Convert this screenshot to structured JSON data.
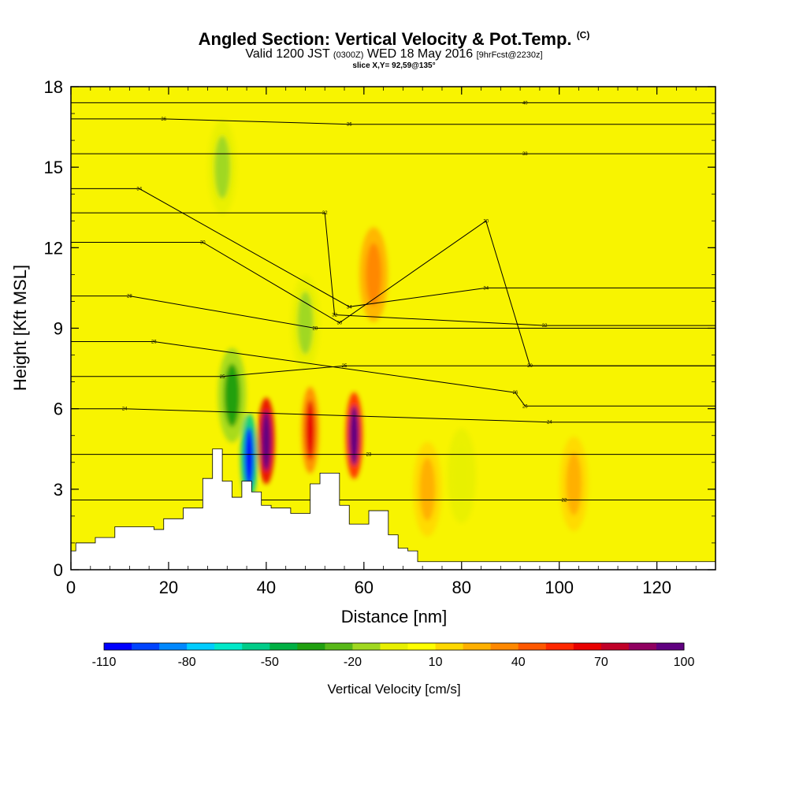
{
  "title": {
    "main": "Angled Section: Vertical Velocity & Pot.Temp.",
    "main_unit": "(C)",
    "line2_a": "Valid 1200 JST",
    "line2_b": "(0300Z)",
    "line2_c": "WED 18 May 2016",
    "line2_d": "[9hrFcst@2230z]",
    "line3": "slice X,Y= 92,59@135°"
  },
  "chart_data": {
    "type": "heatmap",
    "xlabel": "Distance [nm]",
    "ylabel": "Height [Kft MSL]",
    "xlim": [
      0,
      132
    ],
    "ylim": [
      0,
      18
    ],
    "xticks": [
      0,
      20,
      40,
      60,
      80,
      100,
      120
    ],
    "yticks": [
      0,
      3,
      6,
      9,
      12,
      15,
      18
    ],
    "terrain": {
      "x": [
        0,
        1,
        5,
        9,
        13,
        17,
        19,
        23,
        27,
        29,
        31,
        33,
        35,
        37,
        39,
        41,
        45,
        49,
        51,
        55,
        57,
        61,
        65,
        67,
        69,
        71,
        132
      ],
      "top": [
        0.7,
        1.0,
        1.2,
        1.6,
        1.6,
        1.5,
        1.9,
        2.3,
        3.4,
        4.5,
        3.3,
        2.7,
        3.3,
        2.9,
        2.4,
        2.3,
        2.1,
        3.2,
        3.6,
        2.4,
        1.7,
        2.2,
        1.3,
        0.8,
        0.7,
        0.3,
        0.3
      ]
    },
    "velocity_features": [
      {
        "x": 40,
        "z": 4.8,
        "w": 100
      },
      {
        "x": 58,
        "z": 5.0,
        "w": 85
      },
      {
        "x": 49,
        "z": 5.2,
        "w": 55
      },
      {
        "x": 36.5,
        "z": 4.2,
        "w": -110
      },
      {
        "x": 33,
        "z": 6.5,
        "w": -45
      },
      {
        "x": 31,
        "z": 15.0,
        "w": -25
      },
      {
        "x": 62,
        "z": 11.0,
        "w": 30
      },
      {
        "x": 48,
        "z": 9.2,
        "w": -20
      },
      {
        "x": 80,
        "z": 3.5,
        "w": -15
      },
      {
        "x": 73,
        "z": 3.0,
        "w": 20
      },
      {
        "x": 103,
        "z": 3.2,
        "w": 15
      }
    ],
    "theta_contour_labels": [
      {
        "x": 19,
        "z": 16.8,
        "label": "36"
      },
      {
        "x": 57,
        "z": 16.6,
        "label": "36"
      },
      {
        "x": 93,
        "z": 17.4,
        "label": "40"
      },
      {
        "x": 93,
        "z": 15.5,
        "label": "38"
      },
      {
        "x": 14,
        "z": 14.2,
        "label": "34"
      },
      {
        "x": 52,
        "z": 13.3,
        "label": "32"
      },
      {
        "x": 85,
        "z": 13.0,
        "label": "30"
      },
      {
        "x": 27,
        "z": 12.2,
        "label": "30"
      },
      {
        "x": 12,
        "z": 10.2,
        "label": "28"
      },
      {
        "x": 85,
        "z": 10.5,
        "label": "34"
      },
      {
        "x": 57,
        "z": 9.8,
        "label": "34"
      },
      {
        "x": 54,
        "z": 9.5,
        "label": "32"
      },
      {
        "x": 55,
        "z": 9.2,
        "label": "30"
      },
      {
        "x": 50,
        "z": 9.0,
        "label": "28"
      },
      {
        "x": 97,
        "z": 9.1,
        "label": "32"
      },
      {
        "x": 17,
        "z": 8.5,
        "label": "26"
      },
      {
        "x": 94,
        "z": 7.6,
        "label": "30"
      },
      {
        "x": 56,
        "z": 7.6,
        "label": "25"
      },
      {
        "x": 31,
        "z": 7.2,
        "label": "25"
      },
      {
        "x": 91,
        "z": 6.6,
        "label": "26"
      },
      {
        "x": 93,
        "z": 6.1,
        "label": "26"
      },
      {
        "x": 11,
        "z": 6.0,
        "label": "24"
      },
      {
        "x": 98,
        "z": 5.5,
        "label": "24"
      },
      {
        "x": 61,
        "z": 4.3,
        "label": "23"
      },
      {
        "x": 101,
        "z": 2.6,
        "label": "22"
      }
    ],
    "colorbar": {
      "label": "Vertical Velocity [cm/s]",
      "tick_labels": [
        "-110",
        "-80",
        "-50",
        "-20",
        "10",
        "40",
        "70",
        "100"
      ],
      "colors": [
        "#0000ff",
        "#0044ff",
        "#0088ff",
        "#00ccff",
        "#00e8c8",
        "#00cc88",
        "#00b044",
        "#20a010",
        "#58b818",
        "#a0d820",
        "#e8f000",
        "#ffff00",
        "#ffd800",
        "#ffb000",
        "#ff8800",
        "#ff5800",
        "#ff2800",
        "#e80000",
        "#c00028",
        "#900060",
        "#600080"
      ]
    }
  }
}
